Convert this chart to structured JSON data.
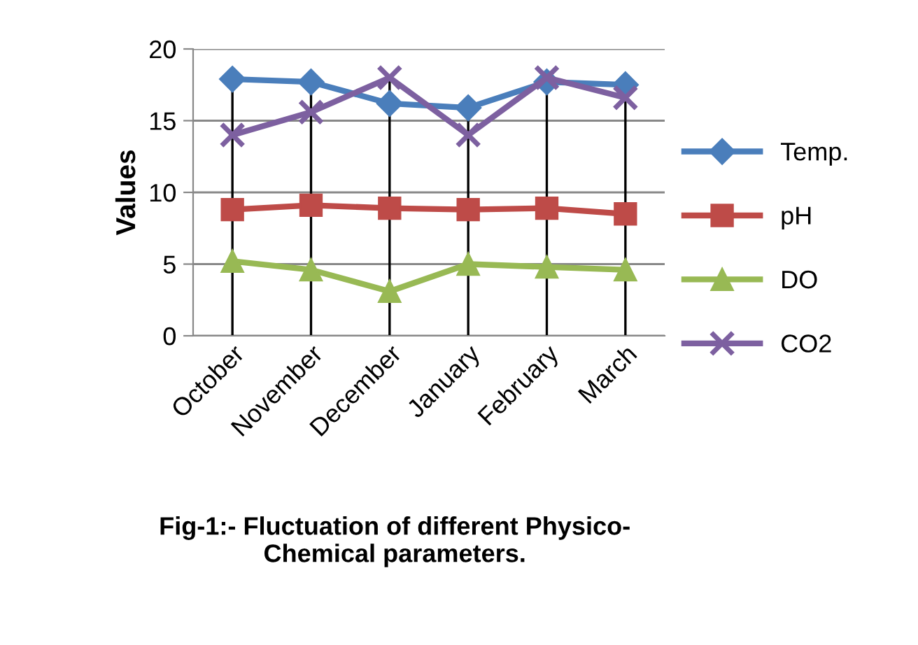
{
  "chart_data": {
    "type": "line",
    "title": "Fig-1:- Fluctuation of different Physico-\nChemical parameters.",
    "ylabel": "Values",
    "categories": [
      "October",
      "November",
      "December",
      "January",
      "February",
      "March"
    ],
    "series": [
      {
        "name": "Temp.",
        "color": "#4a7ebb",
        "marker": "diamond",
        "values": [
          17.9,
          17.7,
          16.2,
          15.9,
          17.7,
          17.5
        ]
      },
      {
        "name": "pH",
        "color": "#be4b48",
        "marker": "square",
        "values": [
          8.8,
          9.1,
          8.9,
          8.8,
          8.9,
          8.5
        ]
      },
      {
        "name": "DO",
        "color": "#98b954",
        "marker": "triangle",
        "values": [
          5.2,
          4.6,
          3.1,
          5.0,
          4.8,
          4.6
        ]
      },
      {
        "name": "CO2",
        "color": "#7d60a0",
        "marker": "cross",
        "values": [
          14,
          15.6,
          18,
          14,
          18,
          16.6
        ]
      }
    ],
    "ylim": [
      0,
      20
    ],
    "yticks": [
      0,
      5,
      10,
      15,
      20
    ],
    "grid": true,
    "legend": "right"
  }
}
